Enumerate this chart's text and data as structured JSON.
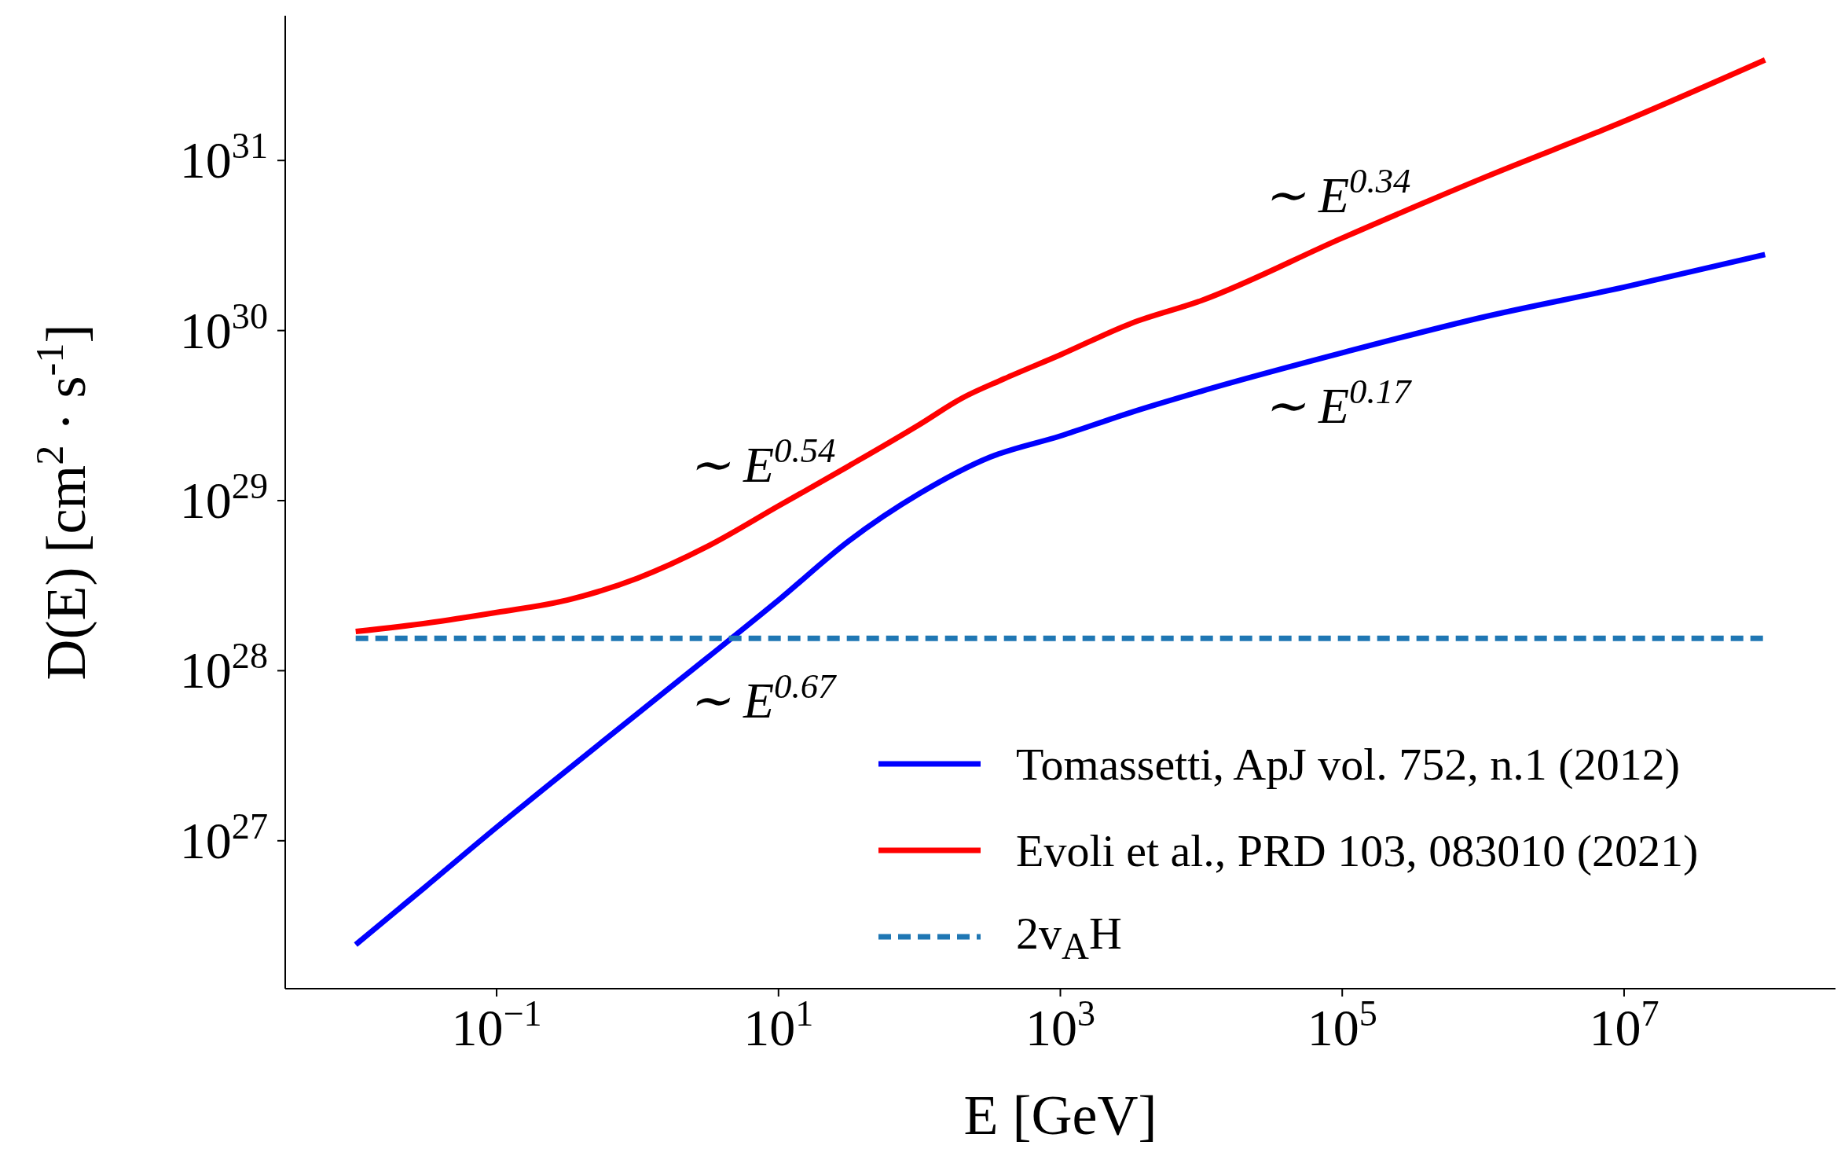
{
  "chart_data": {
    "type": "line",
    "xlabel": "E [GeV]",
    "ylabel": "D(E) [cm$^{2}$ · s$^{-1}$]",
    "log": "xy",
    "grid": false,
    "legend": "bottom right",
    "marker": "none",
    "xlim": [
      0.0031623,
      316227766
    ],
    "ylim": [
      1.35e+26,
      7.1e+31
    ],
    "xticks": [
      {
        "value": 0.1,
        "label": "10$^{−1}$"
      },
      {
        "value": 10,
        "label": "10$^{1}$"
      },
      {
        "value": 1000,
        "label": "10$^{3}$"
      },
      {
        "value": 100000,
        "label": "10$^{5}$"
      },
      {
        "value": 10000000,
        "label": "10$^{7}$"
      }
    ],
    "yticks": [
      {
        "value": 1e+27,
        "label": "10$^{27}$"
      },
      {
        "value": 1e+28,
        "label": "10$^{28}$"
      },
      {
        "value": 1e+29,
        "label": "10$^{29}$"
      },
      {
        "value": 1e+30,
        "label": "10$^{30}$"
      },
      {
        "value": 1e+31,
        "label": "10$^{31}$"
      }
    ],
    "series": [
      {
        "name": "Tomassetti, ApJ vol. 752, n.1 (2012)",
        "color": "#0000ff",
        "line_style": "solid",
        "x": [
          0.01,
          0.0316,
          0.1,
          0.316,
          1,
          3.16,
          10,
          31.6,
          100,
          316,
          1000,
          3160,
          10000,
          100000,
          1000000,
          10000000,
          100000000
        ],
        "values": [
          2.45e+26,
          5.4e+26,
          1.2e+27,
          2.6e+27,
          5.6e+27,
          1.2e+28,
          2.6e+28,
          5.8e+28,
          1.1e+29,
          1.8e+29,
          2.4e+29,
          3.3e+29,
          4.4e+29,
          7.4e+29,
          1.2e+30,
          1.8e+30,
          2.8e+30
        ]
      },
      {
        "name": "Evoli et al., PRD 103, 083010 (2021)",
        "color": "#ff0000",
        "line_style": "solid",
        "x": [
          0.01,
          0.0316,
          0.1,
          0.316,
          1,
          3.16,
          10,
          31.6,
          100,
          200,
          398,
          1000,
          3160,
          10000,
          100000,
          1000000,
          10000000,
          100000000
        ],
        "values": [
          1.7e+28,
          1.9e+28,
          2.2e+28,
          2.6e+28,
          3.5e+28,
          5.4e+28,
          9.3e+28,
          1.6e+29,
          2.8e+29,
          4e+29,
          5.2e+29,
          7.2e+29,
          1.1e+30,
          1.5e+30,
          3.5e+30,
          7.9e+30,
          1.7e+31,
          3.9e+31
        ]
      },
      {
        "name": "2v$_{A}$H",
        "color": "#1f77b4",
        "line_style": "dashed",
        "x": [
          0.01,
          100000000
        ],
        "values": [
          1.55e+28,
          1.55e+28
        ]
      }
    ],
    "annotations": [
      "∼ E$^{0.34}$",
      "∼ E$^{0.17}$",
      "∼ E$^{0.54}$",
      "∼ E$^{0.67}$"
    ]
  }
}
